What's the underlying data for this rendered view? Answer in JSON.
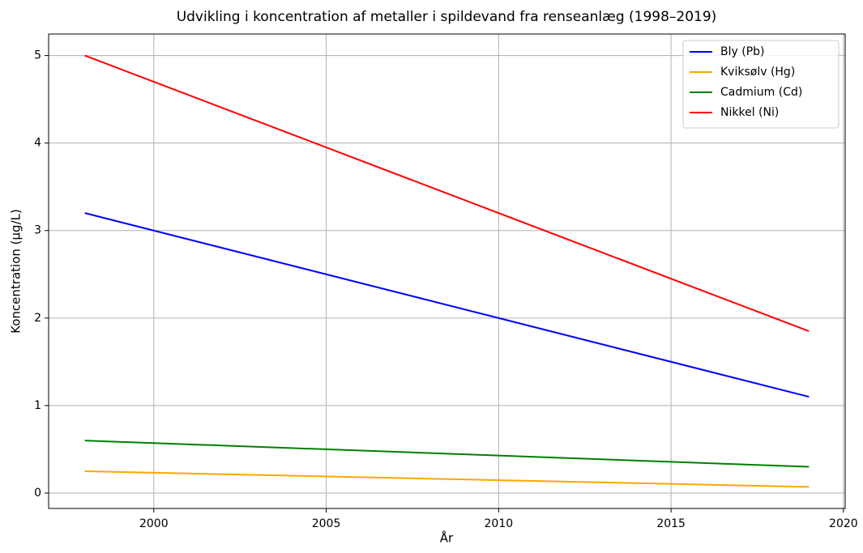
{
  "chart_data": {
    "type": "line",
    "title": "Udvikling i koncentration af metaller i spildevand fra renseanlæg (1998–2019)",
    "x_label": "År",
    "y_label": "Koncentration (µg/L)",
    "x": [
      1998,
      2019
    ],
    "series": [
      {
        "name": "Bly (Pb)",
        "color": "#0000ff",
        "values": [
          3.2,
          1.1
        ]
      },
      {
        "name": "Kviksølv (Hg)",
        "color": "#ffa500",
        "values": [
          0.25,
          0.07
        ]
      },
      {
        "name": "Cadmium (Cd)",
        "color": "#008000",
        "values": [
          0.6,
          0.3
        ]
      },
      {
        "name": "Nikkel (Ni)",
        "color": "#ff0000",
        "values": [
          5.0,
          1.85
        ]
      }
    ],
    "xlim": [
      1996.95,
      2020.05
    ],
    "xticks": [
      2000,
      2005,
      2010,
      2015,
      2020
    ],
    "ylim": [
      -0.176,
      5.246
    ],
    "yticks": [
      0,
      1,
      2,
      3,
      4,
      5
    ],
    "grid": true,
    "legend": "upper right"
  }
}
